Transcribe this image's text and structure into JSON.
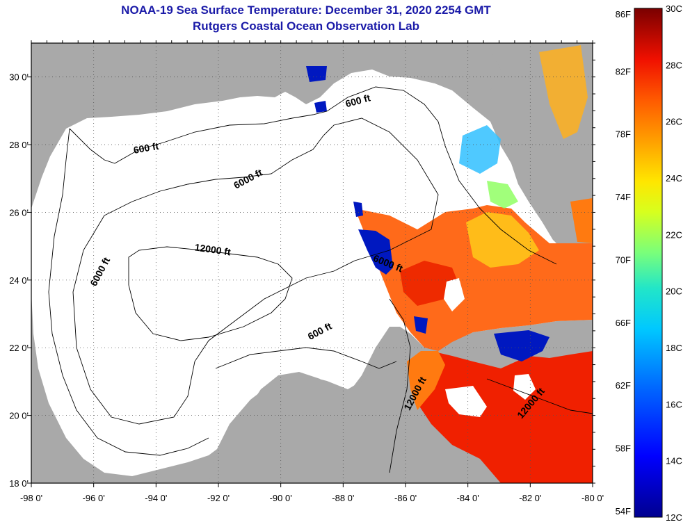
{
  "title": {
    "line1": "NOAA-19 Sea Surface Temperature:  December 31, 2020 2254 GMT",
    "line2": "Rutgers Coastal Ocean Observation Lab"
  },
  "map": {
    "lon_range": [
      -98,
      -80
    ],
    "lat_range": [
      18,
      31
    ],
    "x_ticks": [
      {
        "lon": -98,
        "label": "-98 0'"
      },
      {
        "lon": -96,
        "label": "-96 0'"
      },
      {
        "lon": -94,
        "label": "-94 0'"
      },
      {
        "lon": -92,
        "label": "-92 0'"
      },
      {
        "lon": -90,
        "label": "-90 0'"
      },
      {
        "lon": -88,
        "label": "-88 0'"
      },
      {
        "lon": -86,
        "label": "-86 0'"
      },
      {
        "lon": -84,
        "label": "-84 0'"
      },
      {
        "lon": -82,
        "label": "-82 0'"
      },
      {
        "lon": -80,
        "label": "-80 0'"
      }
    ],
    "y_ticks": [
      {
        "lat": 30,
        "label": "30 0'"
      },
      {
        "lat": 28,
        "label": "28 0'"
      },
      {
        "lat": 26,
        "label": "26 0'"
      },
      {
        "lat": 24,
        "label": "24 0'"
      },
      {
        "lat": 22,
        "label": "22 0'"
      },
      {
        "lat": 20,
        "label": "20 0'"
      },
      {
        "lat": 18,
        "label": "18 0'"
      }
    ],
    "contour_labels": [
      {
        "text": "600 ft",
        "lon": -87.5,
        "lat": 29.2,
        "angle": -15
      },
      {
        "text": "600 ft",
        "lon": -94.3,
        "lat": 27.8,
        "angle": -10
      },
      {
        "text": "6000 ft",
        "lon": -91.0,
        "lat": 26.9,
        "angle": -28
      },
      {
        "text": "12000 ft",
        "lon": -92.2,
        "lat": 24.8,
        "angle": 8
      },
      {
        "text": "6000 ft",
        "lon": -95.7,
        "lat": 24.2,
        "angle": -62
      },
      {
        "text": "6000 ft",
        "lon": -86.6,
        "lat": 24.4,
        "angle": 22
      },
      {
        "text": "600 ft",
        "lon": -88.7,
        "lat": 22.4,
        "angle": -28
      },
      {
        "text": "12000 ft",
        "lon": -85.6,
        "lat": 20.6,
        "angle": -62
      },
      {
        "text": "12000 ft",
        "lon": -81.9,
        "lat": 20.3,
        "angle": -50
      }
    ],
    "colors": {
      "land": "#a9a9a9",
      "ocean": "#ffffff",
      "cloud_gap": "#ffffff"
    }
  },
  "colorbar": {
    "range_c": [
      12,
      30
    ],
    "f_labels": [
      "86F",
      "82F",
      "78F",
      "74F",
      "70F",
      "66F",
      "62F",
      "58F",
      "54F"
    ],
    "c_labels": [
      "30C",
      "28C",
      "26C",
      "24C",
      "22C",
      "20C",
      "18C",
      "16C",
      "14C",
      "12C"
    ]
  }
}
